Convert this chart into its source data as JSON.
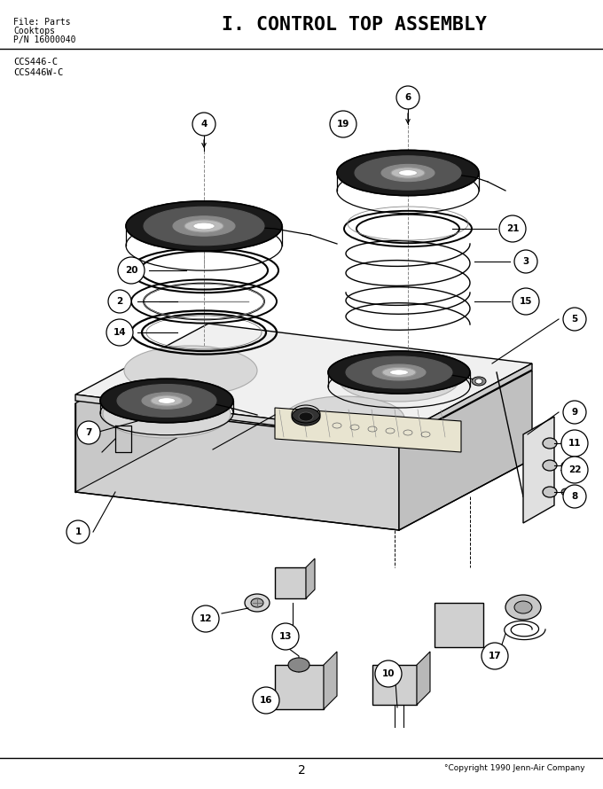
{
  "title": "I. CONTROL TOP ASSEMBLY",
  "header_line1": "File: Parts",
  "header_line2": "Cooktops",
  "header_line3": "P/N 16000040",
  "model_line1": "CCS446-C",
  "model_line2": "CCS446W-C",
  "page_number": "2",
  "copyright": "°Copyright 1990 Jenn-Air Company",
  "bg_color": "#ffffff",
  "lc": "#000000",
  "figsize": [
    6.8,
    8.9
  ],
  "dpi": 100
}
